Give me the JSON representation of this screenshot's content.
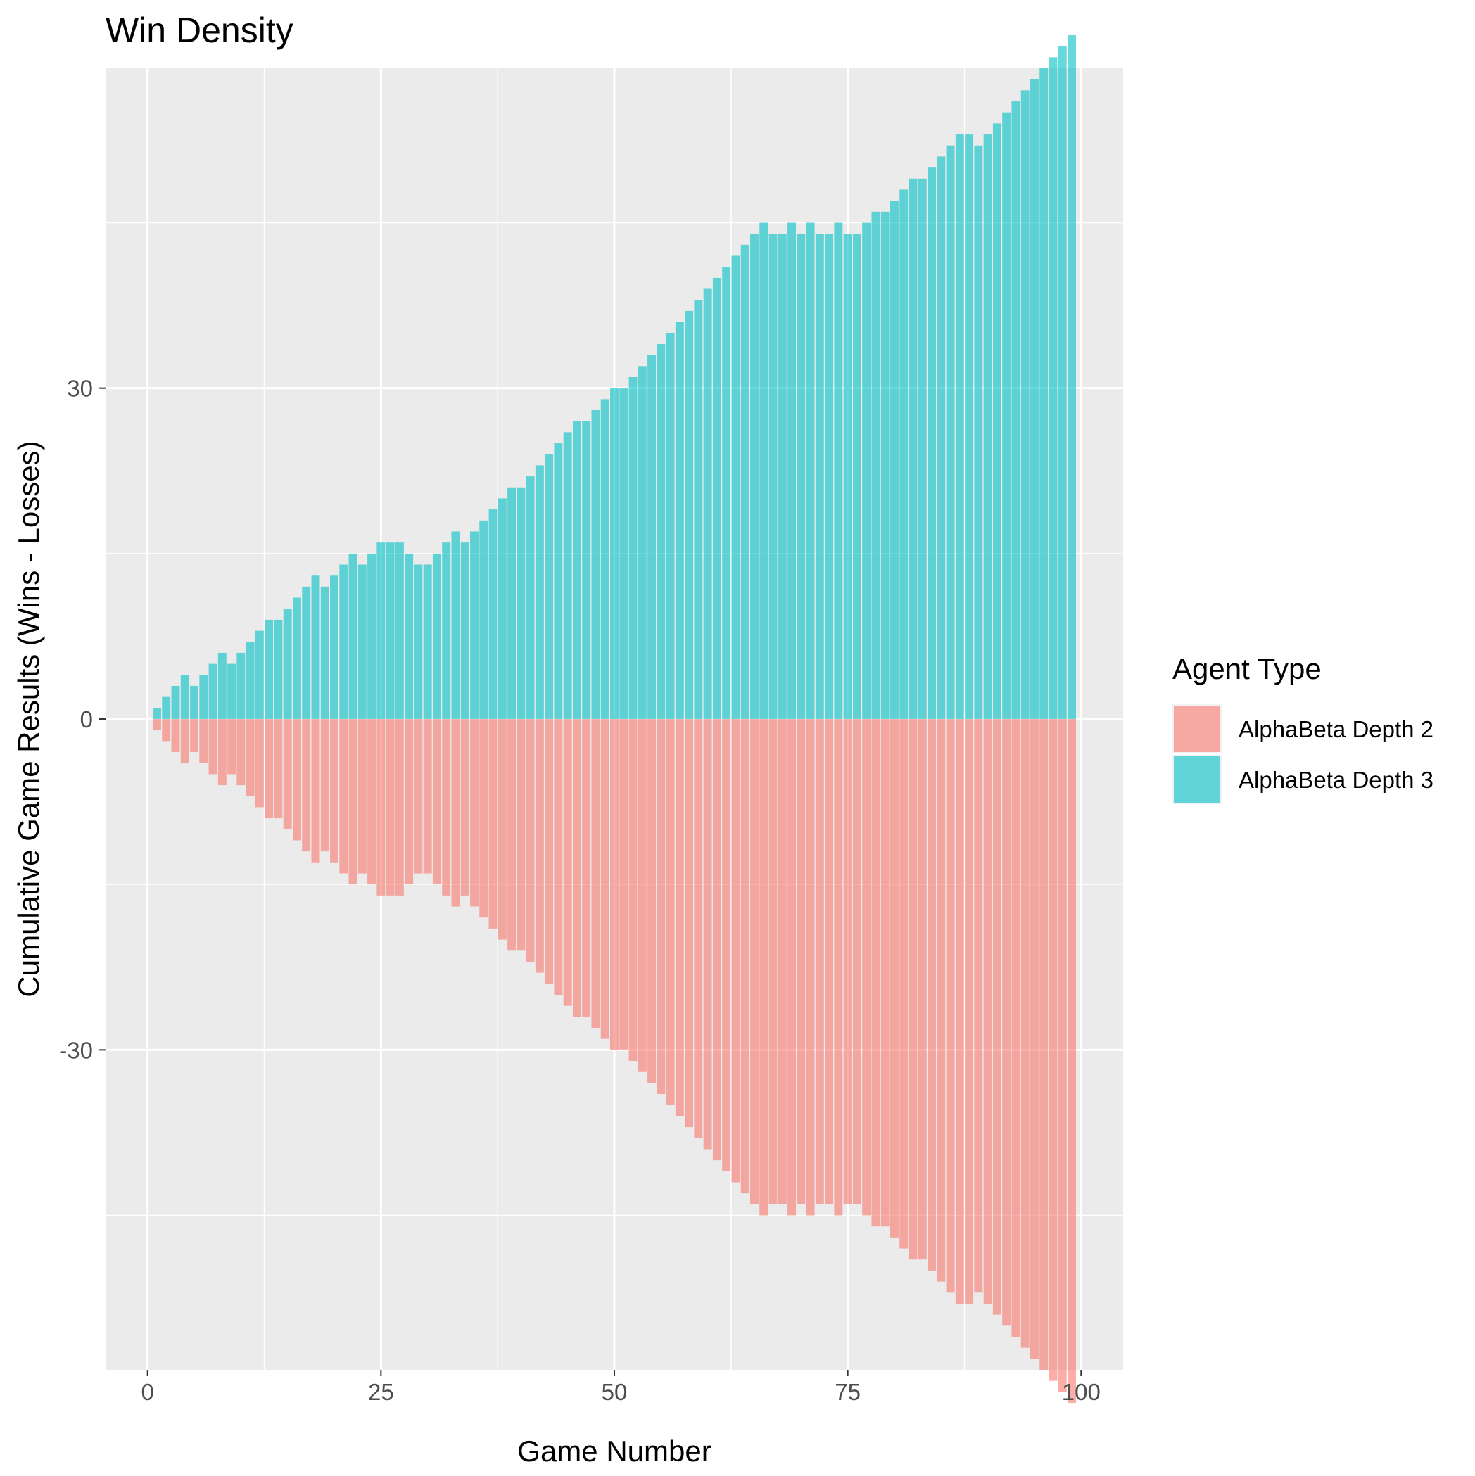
{
  "chart_data": {
    "type": "bar",
    "title": "Win Density",
    "xlabel": "Game Number",
    "ylabel": "Cumulative Game Results (Wins - Losses)",
    "xlim": [
      -4.5,
      104.5
    ],
    "ylim": [
      -59,
      59
    ],
    "x_ticks": [
      0,
      25,
      50,
      75,
      100
    ],
    "y_ticks": [
      -30,
      0,
      30
    ],
    "x_minor": [
      12.5,
      37.5,
      62.5,
      87.5
    ],
    "y_minor": [
      -45,
      -15,
      15,
      45
    ],
    "grid": true,
    "legend": {
      "title": "Agent Type",
      "placement": "right",
      "entries": [
        {
          "label": "AlphaBeta Depth 2",
          "color": "#F8766D"
        },
        {
          "label": "AlphaBeta Depth 3",
          "color": "#00BFC4"
        }
      ]
    },
    "x": [
      1,
      2,
      3,
      4,
      5,
      6,
      7,
      8,
      9,
      10,
      11,
      12,
      13,
      14,
      15,
      16,
      17,
      18,
      19,
      20,
      21,
      22,
      23,
      24,
      25,
      26,
      27,
      28,
      29,
      30,
      31,
      32,
      33,
      34,
      35,
      36,
      37,
      38,
      39,
      40,
      41,
      42,
      43,
      44,
      45,
      46,
      47,
      48,
      49,
      50,
      51,
      52,
      53,
      54,
      55,
      56,
      57,
      58,
      59,
      60,
      61,
      62,
      63,
      64,
      65,
      66,
      67,
      68,
      69,
      70,
      71,
      72,
      73,
      74,
      75,
      76,
      77,
      78,
      79,
      80,
      81,
      82,
      83,
      84,
      85,
      86,
      87,
      88,
      89,
      90,
      91,
      92,
      93,
      94,
      95,
      96,
      97,
      98,
      99
    ],
    "series": [
      {
        "name": "AlphaBeta Depth 2",
        "color": "#F8766D",
        "values": [
          -1,
          -2,
          -3,
          -4,
          -3,
          -4,
          -5,
          -6,
          -5,
          -6,
          -7,
          -8,
          -9,
          -9,
          -10,
          -11,
          -12,
          -13,
          -12,
          -13,
          -14,
          -15,
          -14,
          -15,
          -16,
          -16,
          -16,
          -15,
          -14,
          -14,
          -15,
          -16,
          -17,
          -16,
          -17,
          -18,
          -19,
          -20,
          -21,
          -21,
          -22,
          -23,
          -24,
          -25,
          -26,
          -27,
          -27,
          -28,
          -29,
          -30,
          -30,
          -31,
          -32,
          -33,
          -34,
          -35,
          -36,
          -37,
          -38,
          -39,
          -40,
          -41,
          -42,
          -43,
          -44,
          -45,
          -44,
          -44,
          -45,
          -44,
          -45,
          -44,
          -44,
          -45,
          -44,
          -44,
          -45,
          -46,
          -46,
          -47,
          -48,
          -49,
          -49,
          -50,
          -51,
          -52,
          -53,
          -53,
          -52,
          -53,
          -54,
          -55,
          -56,
          -57,
          -58,
          -59,
          -60,
          -61,
          -62
        ]
      },
      {
        "name": "AlphaBeta Depth 3",
        "color": "#00BFC4",
        "values": [
          1,
          2,
          3,
          4,
          3,
          4,
          5,
          6,
          5,
          6,
          7,
          8,
          9,
          9,
          10,
          11,
          12,
          13,
          12,
          13,
          14,
          15,
          14,
          15,
          16,
          16,
          16,
          15,
          14,
          14,
          15,
          16,
          17,
          16,
          17,
          18,
          19,
          20,
          21,
          21,
          22,
          23,
          24,
          25,
          26,
          27,
          27,
          28,
          29,
          30,
          30,
          31,
          32,
          33,
          34,
          35,
          36,
          37,
          38,
          39,
          40,
          41,
          42,
          43,
          44,
          45,
          44,
          44,
          45,
          44,
          45,
          44,
          44,
          45,
          44,
          44,
          45,
          46,
          46,
          47,
          48,
          49,
          49,
          50,
          51,
          52,
          53,
          53,
          52,
          53,
          54,
          55,
          56,
          57,
          58,
          59,
          60,
          61,
          62
        ]
      }
    ]
  }
}
